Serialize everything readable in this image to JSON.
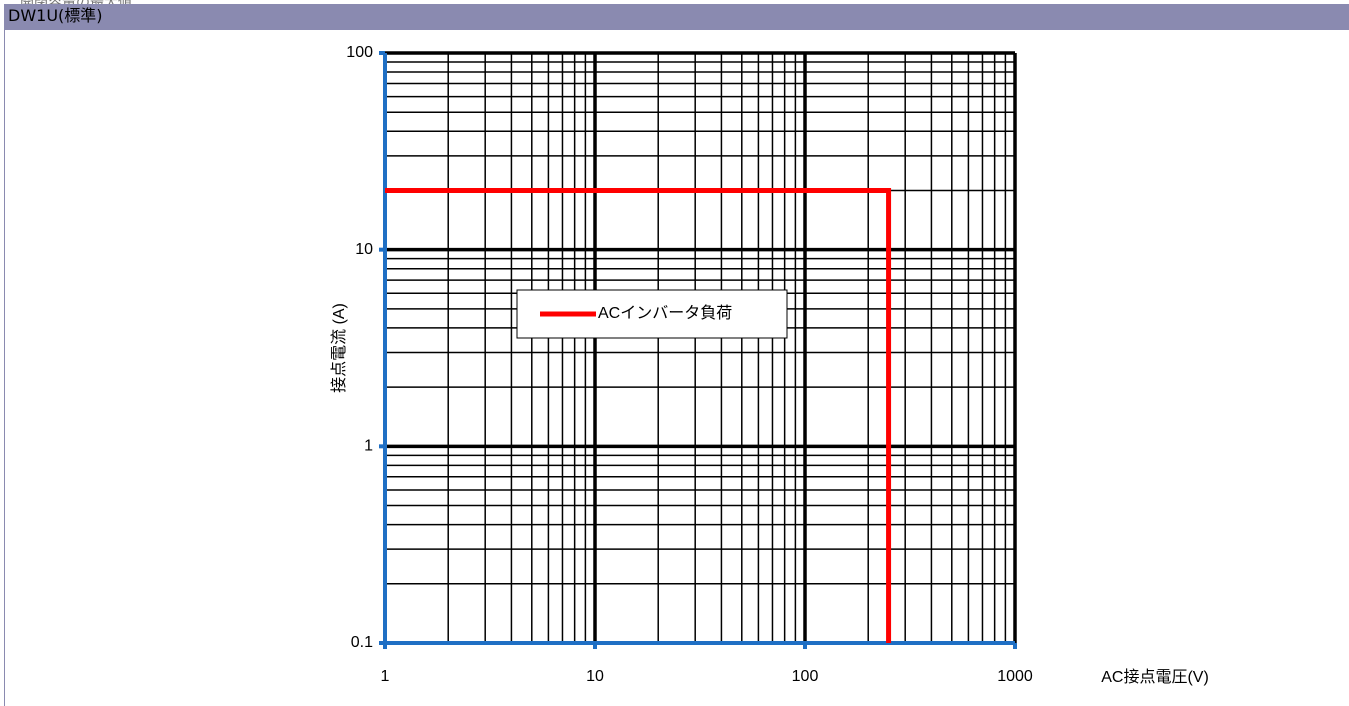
{
  "page": {
    "caption": "開閉容量の最大値",
    "header": "DW1U(標準)"
  },
  "chart_data": {
    "type": "line",
    "x_label": "AC接点電圧(V)",
    "y_label": "接点電流 (A)",
    "xscale": "log",
    "yscale": "log",
    "grid": true,
    "legend": "center-left",
    "xlim": [
      1,
      1000
    ],
    "xticks": [
      1,
      10,
      100,
      1000
    ],
    "ylim": [
      0.1,
      100
    ],
    "yticks": [
      0.1,
      1,
      10,
      100
    ],
    "axis_color": "#1f6fc4",
    "grid_color": "#000000",
    "series": [
      {
        "name": "ACインバータ負荷",
        "color": "#ff0000",
        "x": [
          1,
          250,
          250
        ],
        "values": [
          20,
          20,
          0.1
        ]
      }
    ]
  }
}
